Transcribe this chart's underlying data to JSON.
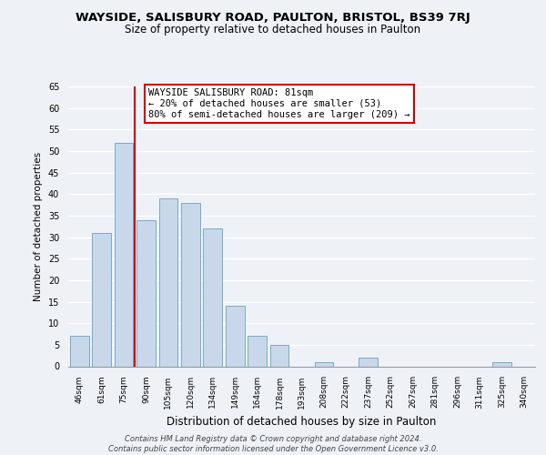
{
  "title": "WAYSIDE, SALISBURY ROAD, PAULTON, BRISTOL, BS39 7RJ",
  "subtitle": "Size of property relative to detached houses in Paulton",
  "xlabel": "Distribution of detached houses by size in Paulton",
  "ylabel": "Number of detached properties",
  "categories": [
    "46sqm",
    "61sqm",
    "75sqm",
    "90sqm",
    "105sqm",
    "120sqm",
    "134sqm",
    "149sqm",
    "164sqm",
    "178sqm",
    "193sqm",
    "208sqm",
    "222sqm",
    "237sqm",
    "252sqm",
    "267sqm",
    "281sqm",
    "296sqm",
    "311sqm",
    "325sqm",
    "340sqm"
  ],
  "values": [
    7,
    31,
    52,
    34,
    39,
    38,
    32,
    14,
    7,
    5,
    0,
    1,
    0,
    2,
    0,
    0,
    0,
    0,
    0,
    1,
    0
  ],
  "bar_color": "#c8d8ea",
  "bar_edge_color": "#7aaac8",
  "vline_color": "#cc0000",
  "ylim": [
    0,
    65
  ],
  "yticks": [
    0,
    5,
    10,
    15,
    20,
    25,
    30,
    35,
    40,
    45,
    50,
    55,
    60,
    65
  ],
  "annotation_title": "WAYSIDE SALISBURY ROAD: 81sqm",
  "annotation_line1": "← 20% of detached houses are smaller (53)",
  "annotation_line2": "80% of semi-detached houses are larger (209) →",
  "annotation_box_color": "#ffffff",
  "annotation_box_edge": "#cc0000",
  "footer_line1": "Contains HM Land Registry data © Crown copyright and database right 2024.",
  "footer_line2": "Contains public sector information licensed under the Open Government Licence v3.0.",
  "background_color": "#eef2f7",
  "grid_color": "#ffffff"
}
